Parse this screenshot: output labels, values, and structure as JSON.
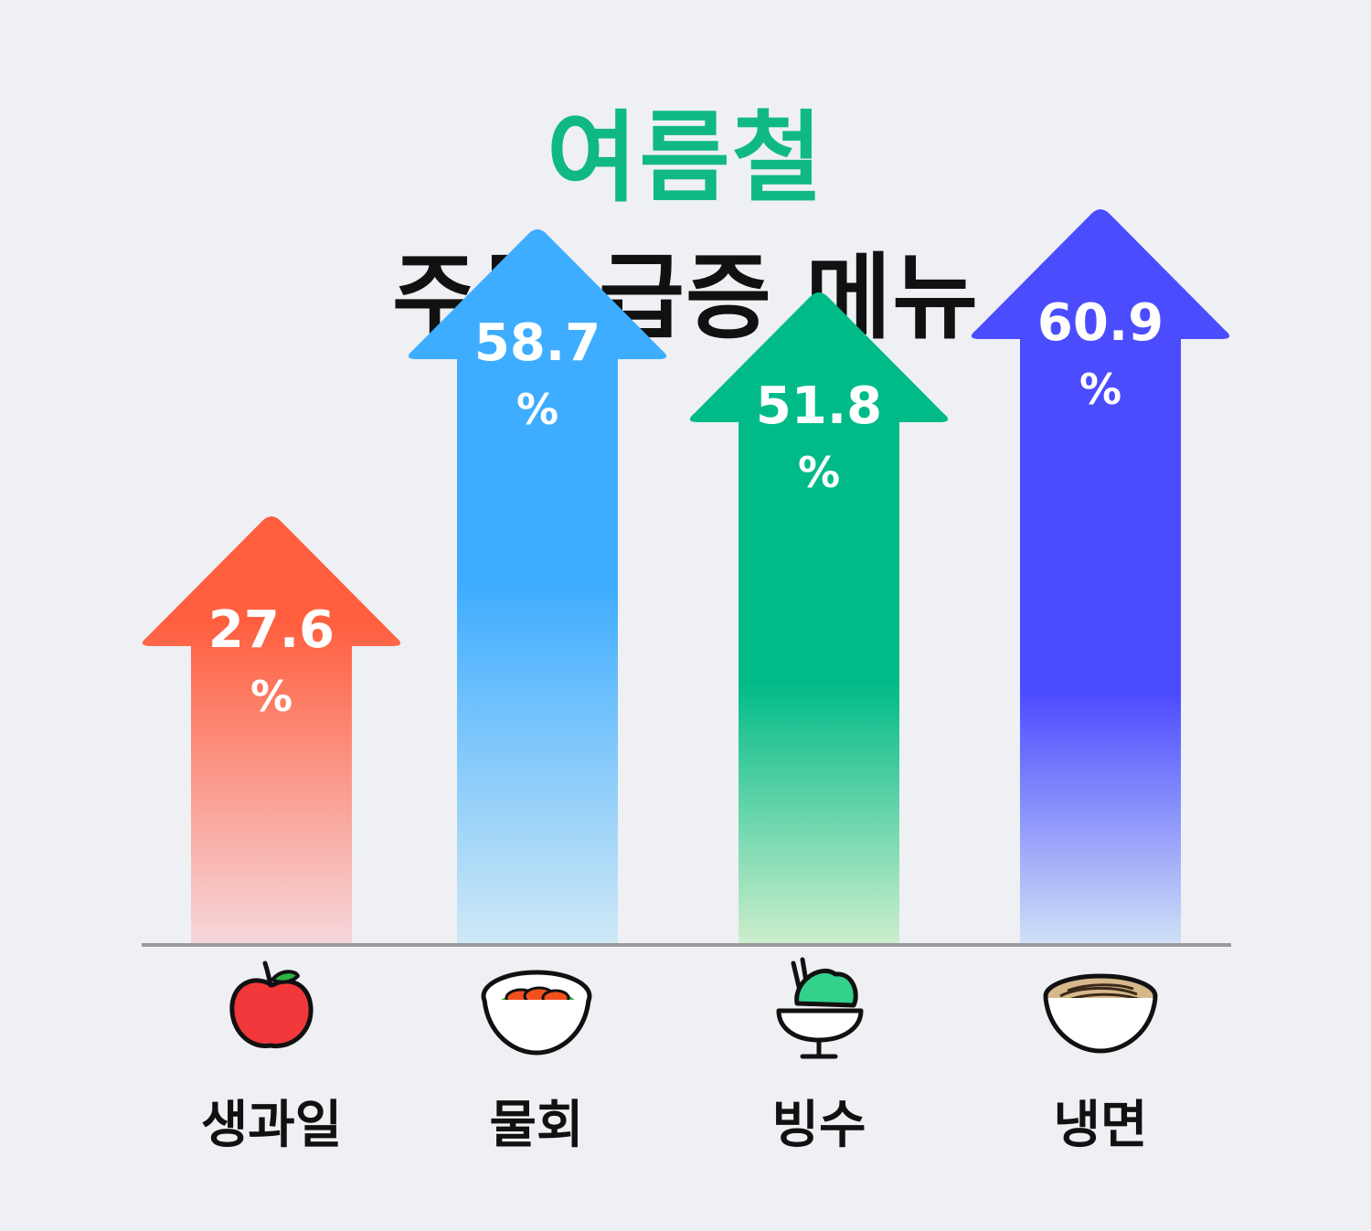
{
  "title": {
    "accent": "여름철",
    "main": "주문 급증 메뉴"
  },
  "colors": {
    "accent": "#10b884",
    "background": "#eff0f4"
  },
  "chart_data": {
    "type": "bar",
    "categories": [
      "생과일",
      "물회",
      "빙수",
      "냉면"
    ],
    "values": [
      27.6,
      58.7,
      51.8,
      60.9
    ],
    "unit": "%",
    "bar_colors": [
      "#ff5f3f",
      "#3fadff",
      "#00bb88",
      "#4c4cff"
    ],
    "icons": [
      "apple-icon",
      "mulhoe-bowl-icon",
      "bingsu-icon",
      "naengmyeon-bowl-icon"
    ]
  }
}
